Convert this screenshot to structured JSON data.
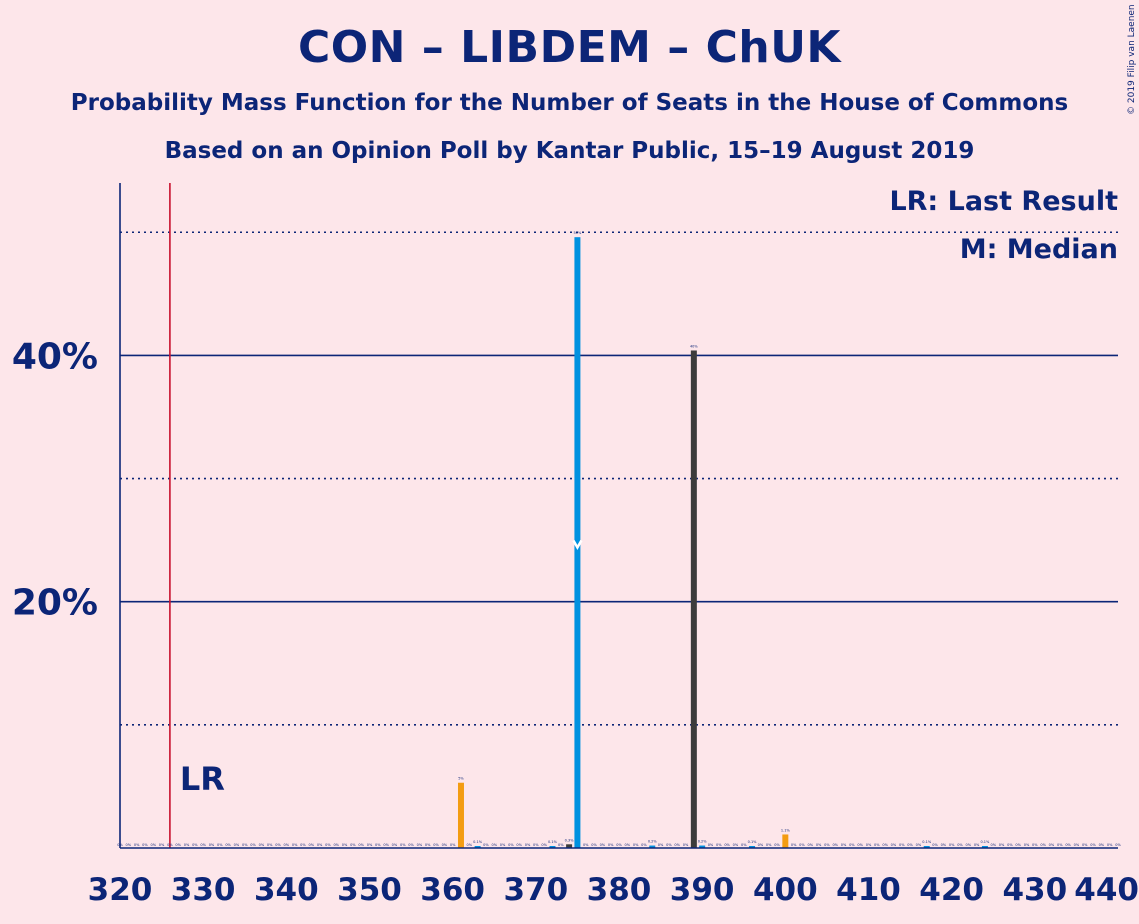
{
  "title": "CON – LIBDEM – ChUK",
  "subtitle1": "Probability Mass Function for the Number of Seats in the House of Commons",
  "subtitle2": "Based on an Opinion Poll by Kantar Public, 15–19 August 2019",
  "copyright": "© 2019 Filip van Laenen",
  "legend": {
    "lr": "LR: Last Result",
    "median": "M: Median"
  },
  "colors": {
    "background": "#fde6ea",
    "text": "#0c2577",
    "bar_default": "#0091e0",
    "bar_median": "#0091e0",
    "bar_last_result": "#f39c12",
    "bar_mode": "#3c3c3c",
    "lr_line": "#c8102e",
    "grid": "#0c2577"
  },
  "chart_data": {
    "type": "bar",
    "xlabel": "",
    "ylabel": "",
    "xlim": [
      320,
      440
    ],
    "ylim": [
      0,
      54
    ],
    "x_ticks": [
      320,
      330,
      340,
      350,
      360,
      370,
      380,
      390,
      400,
      410,
      420,
      430,
      440
    ],
    "y_ticks_major": [
      {
        "value": 20,
        "label": "20%"
      },
      {
        "value": 40,
        "label": "40%"
      }
    ],
    "y_ticks_minor": [
      10,
      30,
      50
    ],
    "last_result": 326,
    "last_result_label": "LR",
    "median": 375,
    "median_label": "M",
    "bars": [
      {
        "x": 361,
        "value": 5.3,
        "label": "5%",
        "color": "#f39c12"
      },
      {
        "x": 363,
        "value": 0.1,
        "label": "0.1%",
        "color": "#0091e0"
      },
      {
        "x": 372,
        "value": 0.1,
        "label": "0.1%",
        "color": "#0091e0"
      },
      {
        "x": 374,
        "value": 0.3,
        "label": "0.3%",
        "color": "#3c3c3c"
      },
      {
        "x": 375,
        "value": 49.6,
        "label": "50%",
        "color": "#0091e0"
      },
      {
        "x": 384,
        "value": 0.2,
        "label": "0.2%",
        "color": "#0091e0"
      },
      {
        "x": 389,
        "value": 40.4,
        "label": "40%",
        "color": "#3c3c3c"
      },
      {
        "x": 390,
        "value": 0.2,
        "label": "0.2%",
        "color": "#0091e0"
      },
      {
        "x": 396,
        "value": 0.1,
        "label": "0.1%",
        "color": "#0091e0"
      },
      {
        "x": 400,
        "value": 1.1,
        "label": "1.1%",
        "color": "#f39c12"
      },
      {
        "x": 417,
        "value": 0.1,
        "label": "0.1%",
        "color": "#0091e0"
      },
      {
        "x": 424,
        "value": 0.1,
        "label": "0.1%",
        "color": "#0091e0"
      }
    ]
  }
}
